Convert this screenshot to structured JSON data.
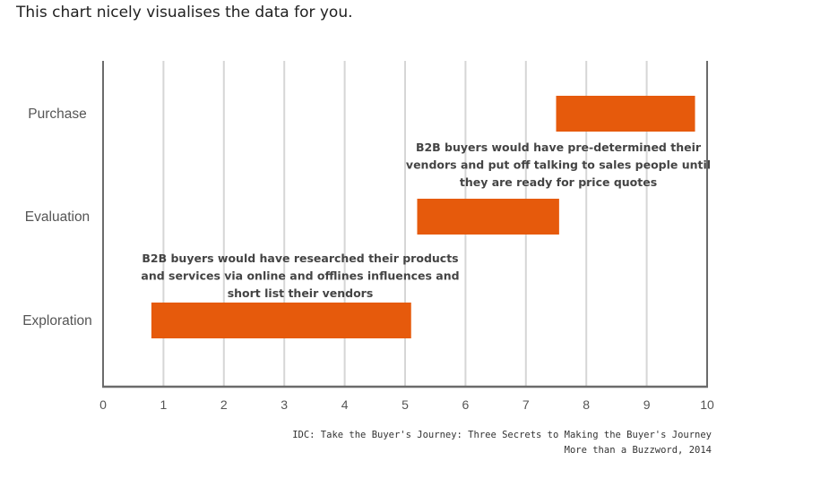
{
  "intro_text": "This chart nicely visualises the data for you.",
  "chart_data": {
    "type": "gantt",
    "categories": [
      "Purchase",
      "Evaluation",
      "Exploration"
    ],
    "bars": [
      {
        "category": "Purchase",
        "start": 7.5,
        "end": 9.8
      },
      {
        "category": "Evaluation",
        "start": 5.2,
        "end": 7.55
      },
      {
        "category": "Exploration",
        "start": 0.8,
        "end": 5.1
      }
    ],
    "xlim": [
      0,
      10
    ],
    "xticks": [
      0,
      1,
      2,
      3,
      4,
      5,
      6,
      7,
      8,
      9,
      10
    ],
    "grid": "vertical",
    "bar_color": "#E65A0C",
    "annotations": [
      {
        "near": "Evaluation",
        "lines": [
          "B2B buyers would have pre-determined their",
          "vendors and put off talking to sales people until",
          "they are ready for price quotes"
        ]
      },
      {
        "near": "Exploration",
        "lines": [
          "B2B buyers would have researched their products",
          "and services via online and offlines influences and",
          "short list their vendors"
        ]
      }
    ]
  },
  "source": {
    "line1": "IDC: Take the Buyer's Journey: Three Secrets to Making the Buyer's Journey",
    "line2": "More than a Buzzword, 2014"
  }
}
